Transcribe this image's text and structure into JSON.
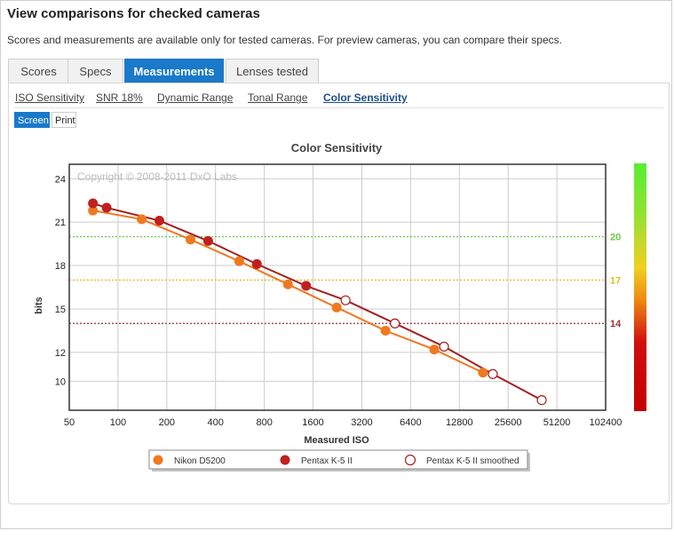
{
  "page": {
    "title": "View comparisons for checked cameras",
    "subtitle": "Scores and measurements are available only for tested cameras. For preview cameras, you can compare their specs."
  },
  "tabs": [
    {
      "label": "Scores",
      "active": false
    },
    {
      "label": "Specs",
      "active": false
    },
    {
      "label": "Measurements",
      "active": true
    },
    {
      "label": "Lenses tested",
      "active": false
    }
  ],
  "subtabs": [
    {
      "label": "ISO Sensitivity",
      "active": false
    },
    {
      "label": "SNR 18%",
      "active": false
    },
    {
      "label": "Dynamic Range",
      "active": false
    },
    {
      "label": "Tonal Range",
      "active": false
    },
    {
      "label": "Color Sensitivity",
      "active": true
    }
  ],
  "view_toggle": {
    "screen_label": "Screen",
    "print_label": "Print",
    "selected": "Screen"
  },
  "colors": {
    "accent": "#1a79c9",
    "nikon": "#f07820",
    "pentax": "#c0201e",
    "pentax_smoothed_fill": "#ffffff",
    "pentax_line": "#a32020",
    "ref20": "#66cc44",
    "ref17": "#d6c21e",
    "ref14": "#a03030"
  },
  "chart_data": {
    "type": "line",
    "title": "Color Sensitivity",
    "watermark": "Copyright © 2008-2011 DxO Labs",
    "xlabel": "Measured ISO",
    "ylabel": "bits",
    "x_scale": "log2",
    "xlim": [
      50,
      102400
    ],
    "ylim": [
      8,
      25
    ],
    "x_ticks": [
      "50",
      "100",
      "200",
      "400",
      "800",
      "1600",
      "3200",
      "6400",
      "12800",
      "25600",
      "51200",
      "102400"
    ],
    "y_ticks": [
      "10",
      "12",
      "15",
      "18",
      "21",
      "24"
    ],
    "grid": true,
    "reference_lines": [
      {
        "label": "20",
        "y": 20,
        "color": "#66cc44"
      },
      {
        "label": "17",
        "y": 17,
        "color": "#d6c21e"
      },
      {
        "label": "14",
        "y": 14,
        "color": "#a03030"
      }
    ],
    "legend_position": "bottom",
    "series": [
      {
        "name": "Nikon D5200",
        "marker": "filled",
        "x": [
          70,
          140,
          280,
          560,
          1120,
          2240,
          4480,
          8960,
          17900
        ],
        "y": [
          21.8,
          21.2,
          19.8,
          18.3,
          16.7,
          15.1,
          13.5,
          12.2,
          10.6
        ]
      },
      {
        "name": "Pentax K-5 II",
        "marker": "filled",
        "x": [
          70,
          85,
          180,
          360,
          720,
          1450
        ],
        "y": [
          22.3,
          22.0,
          21.1,
          19.7,
          18.1,
          16.6
        ]
      },
      {
        "name": "Pentax K-5 II smoothed",
        "marker": "open",
        "x": [
          2540,
          5120,
          10300,
          20600,
          41300
        ],
        "y": [
          15.6,
          14.0,
          12.4,
          10.5,
          8.7
        ]
      }
    ]
  }
}
